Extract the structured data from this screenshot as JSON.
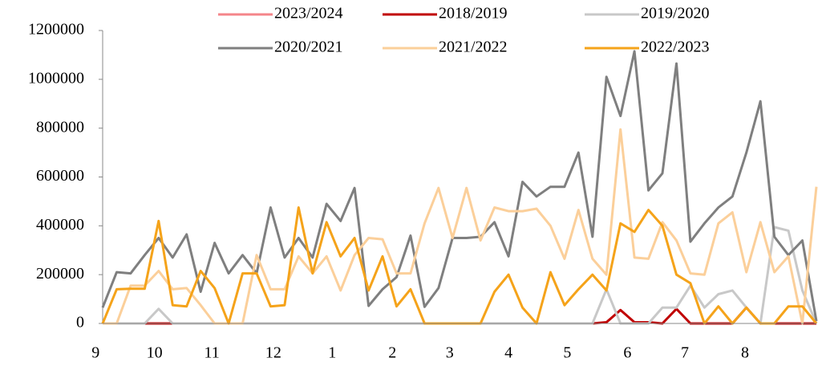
{
  "chart_data": {
    "type": "line",
    "x": [
      0,
      1,
      2,
      3,
      4,
      5,
      6,
      7,
      8,
      9,
      10,
      11,
      12,
      13,
      14,
      15,
      16,
      17,
      18,
      19,
      20,
      21,
      22,
      23,
      24,
      25,
      26,
      27,
      28,
      29,
      30,
      31,
      32,
      33,
      34,
      35,
      36,
      37,
      38,
      39,
      40,
      41,
      42,
      43,
      44,
      45,
      46,
      47,
      48,
      49,
      50,
      51
    ],
    "xlim": [
      0,
      51
    ],
    "xticks": [
      {
        "value": -0.5,
        "label": "9"
      },
      {
        "value": 3.7,
        "label": "10"
      },
      {
        "value": 7.8,
        "label": "11"
      },
      {
        "value": 12.2,
        "label": "12"
      },
      {
        "value": 16.4,
        "label": "1"
      },
      {
        "value": 20.7,
        "label": "2"
      },
      {
        "value": 24.8,
        "label": "3"
      },
      {
        "value": 29,
        "label": "4"
      },
      {
        "value": 33.2,
        "label": "5"
      },
      {
        "value": 37.5,
        "label": "6"
      },
      {
        "value": 41.6,
        "label": "7"
      },
      {
        "value": 45.9,
        "label": "8"
      }
    ],
    "ylim": [
      0,
      1200000
    ],
    "yticks": [
      0,
      200000,
      400000,
      600000,
      800000,
      1000000,
      1200000
    ],
    "series": [
      {
        "name": "2023/2024",
        "color": "#f4858a",
        "values": [
          0,
          0,
          0,
          0,
          0,
          0,
          0,
          0,
          0,
          0,
          0,
          null,
          null,
          null,
          null,
          null,
          null,
          null,
          null,
          null,
          null,
          null,
          null,
          null,
          null,
          null,
          null,
          null,
          null,
          null,
          null,
          null,
          null,
          null,
          null,
          null,
          null,
          null,
          null,
          null,
          null,
          null,
          null,
          null,
          null,
          null,
          null,
          null,
          null,
          null,
          null,
          null
        ]
      },
      {
        "name": "2018/2019",
        "color": "#c00000",
        "values": [
          0,
          0,
          0,
          0,
          0,
          0,
          0,
          0,
          0,
          0,
          0,
          0,
          0,
          0,
          0,
          0,
          0,
          0,
          0,
          0,
          0,
          0,
          0,
          0,
          0,
          0,
          0,
          0,
          0,
          0,
          0,
          0,
          0,
          0,
          0,
          0,
          5000,
          55000,
          5000,
          5000,
          0,
          60000,
          0,
          0,
          0,
          0,
          65000,
          0,
          0,
          0,
          0,
          0
        ]
      },
      {
        "name": "2019/2020",
        "color": "#c8c8c8",
        "values": [
          0,
          0,
          0,
          0,
          60000,
          0,
          0,
          0,
          0,
          0,
          0,
          0,
          0,
          0,
          0,
          0,
          0,
          0,
          0,
          0,
          0,
          0,
          0,
          0,
          0,
          0,
          0,
          0,
          0,
          0,
          0,
          0,
          0,
          0,
          0,
          0,
          140000,
          0,
          0,
          0,
          65000,
          65000,
          155000,
          65000,
          120000,
          135000,
          65000,
          0,
          395000,
          380000,
          135000,
          0
        ]
      },
      {
        "name": "2020/2021",
        "color": "#7f7f7f",
        "values": [
          65000,
          210000,
          205000,
          280000,
          350000,
          270000,
          365000,
          130000,
          330000,
          205000,
          280000,
          205000,
          475000,
          270000,
          350000,
          270000,
          490000,
          420000,
          555000,
          72000,
          140000,
          190000,
          360000,
          68000,
          145000,
          350000,
          350000,
          355000,
          415000,
          275000,
          580000,
          520000,
          560000,
          560000,
          700000,
          355000,
          1010000,
          850000,
          1115000,
          545000,
          615000,
          1065000,
          335000,
          410000,
          475000,
          520000,
          700000,
          910000,
          355000,
          280000,
          340000,
          10000
        ]
      },
      {
        "name": "2021/2022",
        "color": "#fbcf9a",
        "values": [
          0,
          0,
          155000,
          155000,
          215000,
          140000,
          145000,
          75000,
          0,
          0,
          0,
          280000,
          140000,
          140000,
          275000,
          205000,
          275000,
          135000,
          280000,
          350000,
          345000,
          205000,
          205000,
          410000,
          555000,
          350000,
          555000,
          340000,
          475000,
          460000,
          460000,
          470000,
          400000,
          265000,
          465000,
          265000,
          200000,
          795000,
          270000,
          265000,
          415000,
          340000,
          205000,
          200000,
          410000,
          455000,
          210000,
          415000,
          210000,
          275000,
          0,
          560000
        ]
      },
      {
        "name": "2022/2023",
        "color": "#f5a31a",
        "values": [
          0,
          140000,
          142000,
          142000,
          420000,
          75000,
          70000,
          215000,
          145000,
          0,
          205000,
          205000,
          70000,
          75000,
          475000,
          205000,
          415000,
          275000,
          350000,
          135000,
          275000,
          70000,
          140000,
          0,
          0,
          0,
          0,
          0,
          130000,
          200000,
          65000,
          0,
          210000,
          75000,
          140000,
          200000,
          135000,
          410000,
          375000,
          465000,
          400000,
          200000,
          165000,
          0,
          70000,
          0,
          65000,
          0,
          0,
          70000,
          70000,
          0
        ]
      }
    ]
  }
}
